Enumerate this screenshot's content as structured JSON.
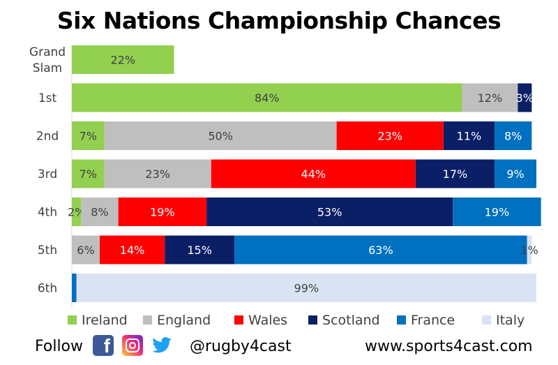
{
  "title": "Six Nations Championship Chances",
  "chart_data": {
    "type": "bar",
    "orientation": "horizontal",
    "stacked": true,
    "categories": [
      "Grand Slam",
      "1st",
      "2nd",
      "3rd",
      "4th",
      "5th",
      "6th"
    ],
    "xlim": [
      0,
      100
    ],
    "grid": false,
    "legend_position": "bottom",
    "series": [
      {
        "name": "Ireland",
        "color": "#92D050",
        "values": [
          22,
          84,
          7,
          7,
          2,
          0,
          0
        ],
        "labels": [
          "22%",
          "84%",
          "7%",
          "7%",
          "2%",
          "",
          ""
        ]
      },
      {
        "name": "England",
        "color": "#BFBFBF",
        "values": [
          0,
          12,
          50,
          23,
          8,
          6,
          0
        ],
        "labels": [
          "",
          "12%",
          "50%",
          "23%",
          "8%",
          "6%",
          ""
        ]
      },
      {
        "name": "Wales",
        "color": "#FF0000",
        "values": [
          0,
          0,
          23,
          44,
          19,
          14,
          0
        ],
        "labels": [
          "",
          "",
          "23%",
          "44%",
          "19%",
          "14%",
          ""
        ]
      },
      {
        "name": "Scotland",
        "color": "#0B1F66",
        "values": [
          0,
          3,
          11,
          17,
          53,
          15,
          0
        ],
        "labels": [
          "",
          "3%",
          "11%",
          "17%",
          "53%",
          "15%",
          ""
        ]
      },
      {
        "name": "France",
        "color": "#0070C0",
        "values": [
          0,
          0,
          8,
          9,
          19,
          63,
          1
        ],
        "labels": [
          "",
          "",
          "8%",
          "9%",
          "19%",
          "63%",
          ""
        ]
      },
      {
        "name": "Italy",
        "color": "#DAE3F3",
        "values": [
          0,
          0,
          0,
          0,
          0,
          1,
          99
        ],
        "labels": [
          "",
          "",
          "",
          "",
          "",
          "1%",
          "99%"
        ]
      }
    ]
  },
  "footer": {
    "follow_label": "Follow",
    "handle": "@rugby4cast",
    "website": "www.sports4cast.com",
    "icons": [
      "facebook-icon",
      "instagram-icon",
      "twitter-icon"
    ]
  }
}
